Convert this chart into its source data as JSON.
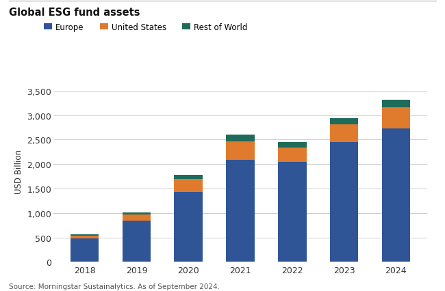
{
  "years": [
    "2018",
    "2019",
    "2020",
    "2021",
    "2022",
    "2023",
    "2024"
  ],
  "europe": [
    480,
    840,
    1430,
    2080,
    2050,
    2450,
    2730
  ],
  "united_states": [
    60,
    130,
    270,
    380,
    290,
    370,
    430
  ],
  "rest_of_world": [
    30,
    40,
    75,
    150,
    115,
    125,
    155
  ],
  "color_europe": "#2f5597",
  "color_us": "#e07b2e",
  "color_row": "#1f6b5a",
  "title": "Global ESG fund assets",
  "ylabel": "USD Billion",
  "source": "Source: Morningstar Sustainalytics. As of September 2024.",
  "yticks": [
    0,
    500,
    1000,
    1500,
    2000,
    2500,
    3000,
    3500
  ],
  "ylim": [
    0,
    3700
  ],
  "legend_labels": [
    "Europe",
    "United States",
    "Rest of World"
  ],
  "bar_width": 0.55,
  "background_color": "#ffffff",
  "grid_color": "#cccccc"
}
